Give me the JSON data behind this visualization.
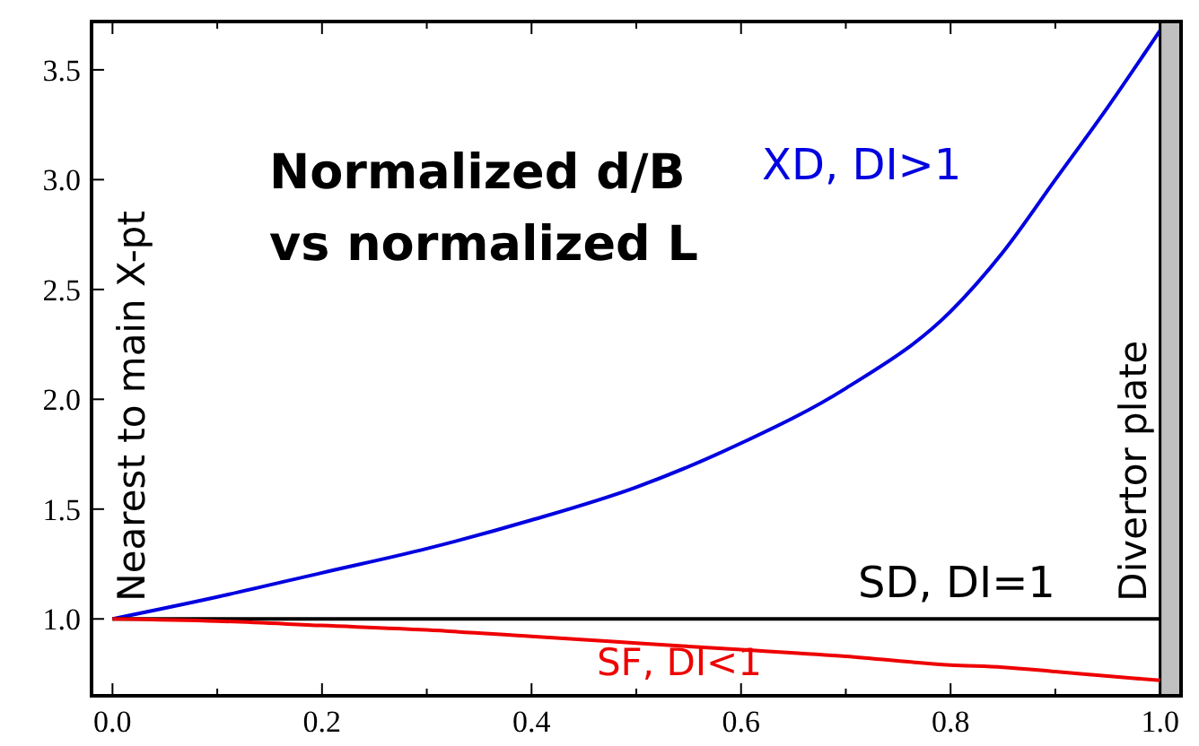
{
  "chart_data": {
    "type": "line",
    "title": "Normalized d/B vs normalized L",
    "annotations": [
      "Nearest to main X-pt"
    ],
    "x": [
      0,
      0.1,
      0.2,
      0.3,
      0.4,
      0.5,
      0.6,
      0.7,
      0.8,
      0.85,
      0.9,
      0.95,
      1.0
    ],
    "series": [
      {
        "name": "XD, DI>1",
        "color": "#0000e0",
        "values": [
          1.0,
          1.1,
          1.21,
          1.32,
          1.45,
          1.6,
          1.8,
          2.05,
          2.4,
          2.67,
          3.0,
          3.33,
          3.68
        ]
      },
      {
        "name": "SD, DI=1",
        "color": "#000000",
        "values": [
          1,
          1,
          1,
          1,
          1,
          1,
          1,
          1,
          1,
          1,
          1,
          1,
          1
        ]
      },
      {
        "name": "SF, DI<1",
        "color": "#ee0000",
        "values": [
          1.0,
          0.99,
          0.97,
          0.95,
          0.92,
          0.89,
          0.86,
          0.83,
          0.79,
          0.78,
          0.76,
          0.74,
          0.72
        ]
      }
    ],
    "bands": [
      {
        "axis": "x",
        "from": 1.0,
        "to": 1.02,
        "label": "Divertor plate",
        "color": "#c0c0c0"
      }
    ],
    "xlim": [
      -0.02,
      1.02
    ],
    "ylim": [
      0.65,
      3.72
    ],
    "xticks": [
      {
        "value": 0,
        "label": "0.0"
      },
      {
        "value": 0.1,
        "label": null
      },
      {
        "value": 0.2,
        "label": "0.2"
      },
      {
        "value": 0.3,
        "label": null
      },
      {
        "value": 0.4,
        "label": "0.4"
      },
      {
        "value": 0.5,
        "label": null
      },
      {
        "value": 0.6,
        "label": "0.6"
      },
      {
        "value": 0.7,
        "label": null
      },
      {
        "value": 0.8,
        "label": "0.8"
      },
      {
        "value": 0.9,
        "label": null
      },
      {
        "value": 1.0,
        "label": "1.0"
      }
    ],
    "yticks": [
      {
        "value": 1.0,
        "label": "1.0"
      },
      {
        "value": 1.5,
        "label": "1.5"
      },
      {
        "value": 2.0,
        "label": "2.0"
      },
      {
        "value": 2.5,
        "label": "2.5"
      },
      {
        "value": 3.0,
        "label": "3.0"
      },
      {
        "value": 3.5,
        "label": "3.5"
      }
    ],
    "grid": false,
    "marker": "none",
    "line_style": "solid"
  }
}
